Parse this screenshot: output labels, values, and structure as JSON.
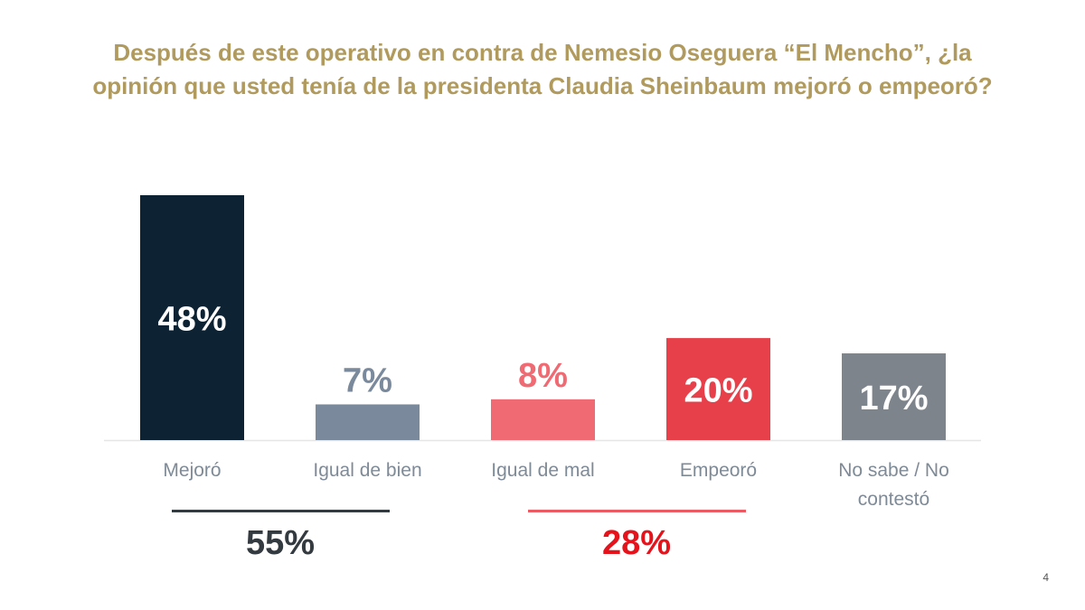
{
  "chart_data": {
    "type": "bar",
    "title": "Después de este operativo en contra de Nemesio Oseguera “El Mencho”, ¿la opinión que usted tenía de la presidenta Claudia Sheinbaum mejoró o empeoró?",
    "categories": [
      "Mejoró",
      "Igual de bien",
      "Igual de mal",
      "Empeoró",
      "No sabe / No contestó"
    ],
    "values": [
      48,
      7,
      8,
      20,
      17
    ],
    "data_labels": [
      "48%",
      "7%",
      "8%",
      "20%",
      "17%"
    ],
    "colors": [
      "#0d2233",
      "#7a8a9c",
      "#ef6a72",
      "#e8404a",
      "#7d848c"
    ],
    "label_inside": [
      true,
      false,
      false,
      true,
      true
    ],
    "ylim": [
      0,
      50
    ],
    "grid": false,
    "groups": [
      {
        "value": "55%",
        "categories": [
          "Mejoró",
          "Igual de bien"
        ],
        "color": "#333a40"
      },
      {
        "value": "28%",
        "categories": [
          "Igual de mal",
          "Empeoró"
        ],
        "color": "#e5141c"
      }
    ]
  },
  "page_number": "4"
}
